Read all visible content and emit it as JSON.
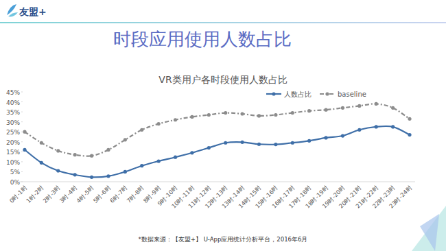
{
  "header": {
    "logo": "友盟+",
    "title": "时段应用使用人数占比"
  },
  "footnote": "*数据来源：【友盟+】 U-App应用统计分析平台，2016年6月",
  "chart_data": {
    "type": "line",
    "title": "VR类用户各时段使用人数占比",
    "categories": [
      "0时-1时",
      "1时-2时",
      "2时-3时",
      "3时-4时",
      "4时-5时",
      "5时-6时",
      "6时-7时",
      "7时-8时",
      "8时-9时",
      "9时-10时",
      "10时-11时",
      "11时-12时",
      "12时-13时",
      "13时-14时",
      "14时-15时",
      "15时-16时",
      "16时-17时",
      "17时-18时",
      "18时-19时",
      "19时-20时",
      "20时-21时",
      "21时-22时",
      "22时-23时",
      "23时-24时"
    ],
    "series": [
      {
        "name": "人数占比",
        "color": "#3f6fa8",
        "marker": "circle",
        "line_style": "solid",
        "values": [
          16,
          9.5,
          5.5,
          3.5,
          2.3,
          2.8,
          5,
          8,
          10.3,
          12.3,
          14.5,
          17,
          19.5,
          19.8,
          18.8,
          18.7,
          19.5,
          20.5,
          22,
          23,
          26,
          27.5,
          27.5,
          23.5
        ]
      },
      {
        "name": "baseline",
        "color": "#8c8c8c",
        "marker": "circle",
        "line_style": "dashed",
        "values": [
          25,
          19.5,
          15.5,
          13.5,
          13,
          16,
          21,
          26,
          29,
          31,
          32.5,
          33.5,
          34.5,
          34,
          33,
          33.5,
          34.5,
          35.5,
          36,
          37,
          38,
          39,
          37,
          31.5
        ]
      }
    ],
    "ylim": [
      0,
      45
    ],
    "yticks": [
      {
        "value": 0,
        "label": "0%"
      },
      {
        "value": 5,
        "label": "5%"
      },
      {
        "value": 10,
        "label": "10%"
      },
      {
        "value": 15,
        "label": "15%"
      },
      {
        "value": 20,
        "label": "20%"
      },
      {
        "value": 25,
        "label": "25%"
      },
      {
        "value": 30,
        "label": "30%"
      },
      {
        "value": 35,
        "label": "35%"
      },
      {
        "value": 40,
        "label": "40%"
      },
      {
        "value": 45,
        "label": "45%"
      }
    ],
    "grid": false,
    "legend": "upper right"
  }
}
